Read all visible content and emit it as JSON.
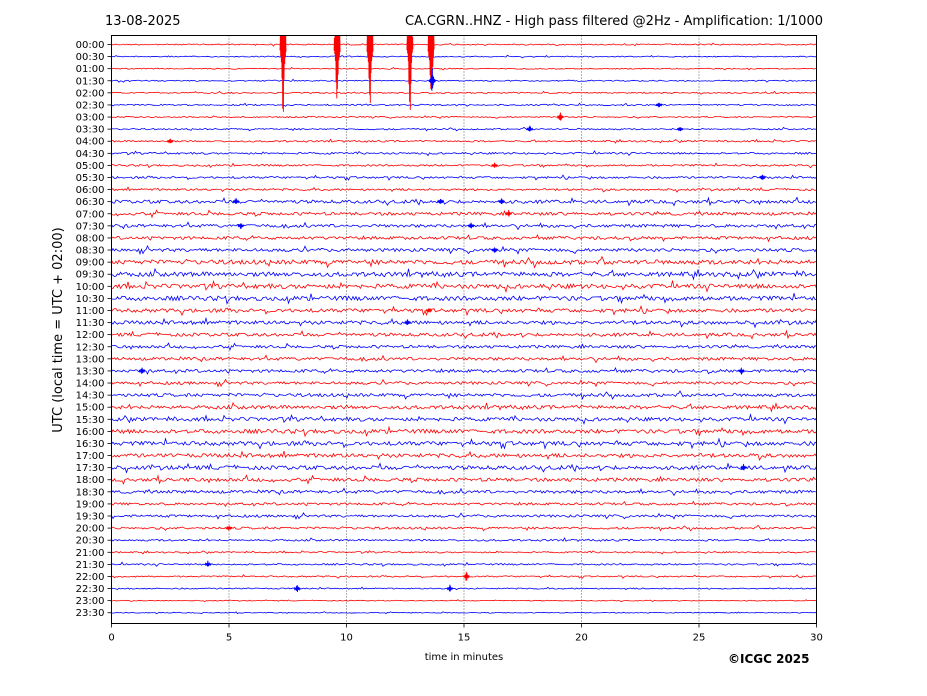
{
  "header": {
    "date": "13-08-2025",
    "title": "CA.CGRN..HNZ - High pass filtered @2Hz - Amplification: 1/1000"
  },
  "credit": "©ICGC 2025",
  "chart_data": {
    "type": "line",
    "chart_kind": "helicorder seismogram",
    "xlabel": "time in minutes",
    "ylabel": "UTC (local time = UTC + 02:00)",
    "xlim": [
      0,
      30
    ],
    "x_ticks": [
      "0",
      "5",
      "10",
      "15",
      "20",
      "25",
      "30"
    ],
    "x_tick_values": [
      0,
      5,
      10,
      15,
      20,
      25,
      30
    ],
    "row_labels": [
      "00:00",
      "00:30",
      "01:00",
      "01:30",
      "02:00",
      "02:30",
      "03:00",
      "03:30",
      "04:00",
      "04:30",
      "05:00",
      "05:30",
      "06:00",
      "06:30",
      "07:00",
      "07:30",
      "08:00",
      "08:30",
      "09:00",
      "09:30",
      "10:00",
      "10:30",
      "11:00",
      "11:30",
      "12:00",
      "12:30",
      "13:00",
      "13:30",
      "14:00",
      "14:30",
      "15:00",
      "15:30",
      "16:00",
      "16:30",
      "17:00",
      "17:30",
      "18:00",
      "18:30",
      "19:00",
      "19:30",
      "20:00",
      "20:30",
      "21:00",
      "21:30",
      "22:00",
      "22:30",
      "23:00",
      "23:30"
    ],
    "trace_colors": [
      "#ff0000",
      "#0000ff"
    ],
    "grid": "vertical dotted at x ticks",
    "row_noise": [
      0.6,
      0.5,
      0.5,
      0.6,
      0.6,
      0.7,
      0.6,
      0.7,
      0.8,
      0.9,
      0.9,
      1.0,
      1.0,
      1.6,
      1.5,
      1.5,
      1.5,
      1.6,
      2.2,
      2.2,
      2.2,
      2.2,
      1.8,
      1.8,
      1.6,
      1.4,
      1.5,
      1.5,
      1.4,
      1.6,
      1.8,
      1.8,
      2.0,
      2.0,
      1.9,
      1.9,
      1.7,
      1.5,
      1.2,
      1.2,
      1.1,
      0.9,
      0.7,
      0.8,
      0.7,
      0.6,
      0.4,
      0.4
    ],
    "events": [
      {
        "row": 0,
        "minute": 7.3,
        "amplitude": 95
      },
      {
        "row": 0,
        "minute": 9.6,
        "amplitude": 95
      },
      {
        "row": 0,
        "minute": 11.0,
        "amplitude": 95
      },
      {
        "row": 0,
        "minute": 12.7,
        "amplitude": 95
      },
      {
        "row": 0,
        "minute": 13.6,
        "amplitude": 95
      },
      {
        "row": 3,
        "minute": 13.65,
        "amplitude": 14
      },
      {
        "row": 5,
        "minute": 23.3,
        "amplitude": 3
      },
      {
        "row": 6,
        "minute": 19.1,
        "amplitude": 6
      },
      {
        "row": 7,
        "minute": 17.8,
        "amplitude": 4
      },
      {
        "row": 7,
        "minute": 24.2,
        "amplitude": 3
      },
      {
        "row": 8,
        "minute": 2.5,
        "amplitude": 3
      },
      {
        "row": 10,
        "minute": 16.3,
        "amplitude": 3
      },
      {
        "row": 11,
        "minute": 27.7,
        "amplitude": 4
      },
      {
        "row": 13,
        "minute": 5.3,
        "amplitude": 4
      },
      {
        "row": 13,
        "minute": 14.0,
        "amplitude": 4
      },
      {
        "row": 13,
        "minute": 16.6,
        "amplitude": 4
      },
      {
        "row": 14,
        "minute": 16.9,
        "amplitude": 4
      },
      {
        "row": 15,
        "minute": 5.5,
        "amplitude": 4
      },
      {
        "row": 15,
        "minute": 15.3,
        "amplitude": 4
      },
      {
        "row": 17,
        "minute": 16.3,
        "amplitude": 4
      },
      {
        "row": 22,
        "minute": 13.5,
        "amplitude": 3
      },
      {
        "row": 23,
        "minute": 12.6,
        "amplitude": 4
      },
      {
        "row": 27,
        "minute": 1.3,
        "amplitude": 4
      },
      {
        "row": 27,
        "minute": 26.8,
        "amplitude": 4
      },
      {
        "row": 35,
        "minute": 26.9,
        "amplitude": 4
      },
      {
        "row": 40,
        "minute": 5.0,
        "amplitude": 3
      },
      {
        "row": 43,
        "minute": 4.1,
        "amplitude": 4
      },
      {
        "row": 44,
        "minute": 15.1,
        "amplitude": 6
      },
      {
        "row": 45,
        "minute": 7.9,
        "amplitude": 5
      },
      {
        "row": 45,
        "minute": 14.4,
        "amplitude": 4
      }
    ]
  }
}
